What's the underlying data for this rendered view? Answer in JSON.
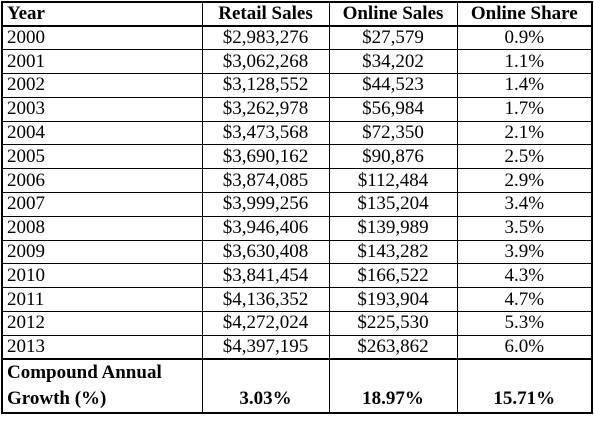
{
  "table": {
    "columns": [
      "Year",
      "Retail Sales",
      "Online Sales",
      "Online Share"
    ],
    "rows": [
      {
        "year": "2000",
        "retail": "$2,983,276",
        "online": "$27,579",
        "share": "0.9%"
      },
      {
        "year": "2001",
        "retail": "$3,062,268",
        "online": "$34,202",
        "share": "1.1%"
      },
      {
        "year": "2002",
        "retail": "$3,128,552",
        "online": "$44,523",
        "share": "1.4%"
      },
      {
        "year": "2003",
        "retail": "$3,262,978",
        "online": "$56,984",
        "share": "1.7%"
      },
      {
        "year": "2004",
        "retail": "$3,473,568",
        "online": "$72,350",
        "share": "2.1%"
      },
      {
        "year": "2005",
        "retail": "$3,690,162",
        "online": "$90,876",
        "share": "2.5%"
      },
      {
        "year": "2006",
        "retail": "$3,874,085",
        "online": "$112,484",
        "share": "2.9%"
      },
      {
        "year": "2007",
        "retail": "$3,999,256",
        "online": "$135,204",
        "share": "3.4%"
      },
      {
        "year": "2008",
        "retail": "$3,946,406",
        "online": "$139,989",
        "share": "3.5%"
      },
      {
        "year": "2009",
        "retail": "$3,630,408",
        "online": "$143,282",
        "share": "3.9%"
      },
      {
        "year": "2010",
        "retail": "$3,841,454",
        "online": "$166,522",
        "share": "4.3%"
      },
      {
        "year": "2011",
        "retail": "$4,136,352",
        "online": "$193,904",
        "share": "4.7%"
      },
      {
        "year": "2012",
        "retail": "$4,272,024",
        "online": "$225,530",
        "share": "5.3%"
      },
      {
        "year": "2013",
        "retail": "$4,397,195",
        "online": "$263,862",
        "share": "6.0%"
      }
    ],
    "footer": {
      "label": "Compound Annual Growth (%)",
      "retail": "3.03%",
      "online": "18.97%",
      "share": "15.71%"
    }
  }
}
